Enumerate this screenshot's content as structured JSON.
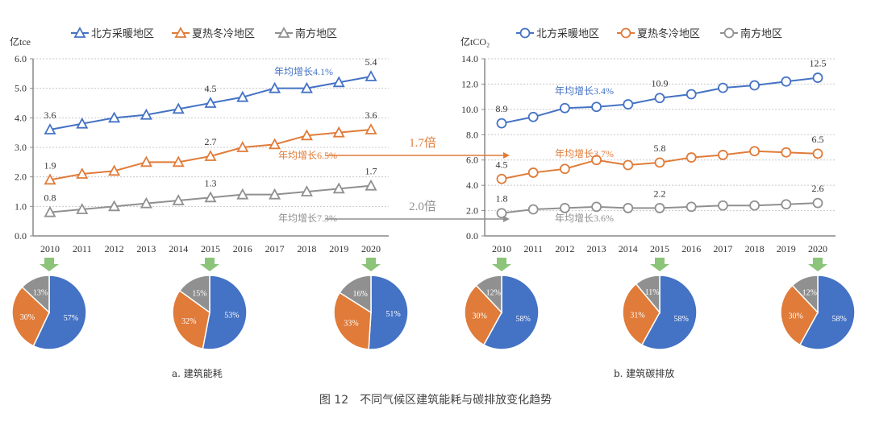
{
  "figure_caption": "图 12　不同气候区建筑能耗与碳排放变化趋势",
  "colors": {
    "north": "#4472C4",
    "hscw": "#E07B39",
    "south": "#909090",
    "arrow_green": "#8CC47A",
    "grid": "#c8c8c8",
    "axis": "#888888"
  },
  "chart_data": [
    {
      "id": "energy",
      "type": "line",
      "sub_caption": "a. 建筑能耗",
      "ylabel": "亿tce",
      "ylim": [
        0,
        6
      ],
      "yticks": [
        "0.0",
        "1.0",
        "2.0",
        "3.0",
        "4.0",
        "5.0",
        "6.0"
      ],
      "ytick_values": [
        0,
        1,
        2,
        3,
        4,
        5,
        6
      ],
      "grid": true,
      "marker": "triangle",
      "legend_position": "top",
      "x": [
        "2010",
        "2011",
        "2012",
        "2013",
        "2014",
        "2015",
        "2016",
        "2017",
        "2018",
        "2019",
        "2020"
      ],
      "series": [
        {
          "name": "北方采暖地区",
          "key": "north",
          "values": [
            3.6,
            3.8,
            4.0,
            4.1,
            4.3,
            4.5,
            4.7,
            5.0,
            5.0,
            5.2,
            5.4
          ],
          "labels": [
            {
              "i": 0,
              "text": "3.6"
            },
            {
              "i": 5,
              "text": "4.5"
            },
            {
              "i": 10,
              "text": "5.4"
            }
          ],
          "growth": "年均增长4.1%"
        },
        {
          "name": "夏热冬冷地区",
          "key": "hscw",
          "values": [
            1.9,
            2.1,
            2.2,
            2.5,
            2.5,
            2.7,
            3.0,
            3.1,
            3.4,
            3.5,
            3.6
          ],
          "labels": [
            {
              "i": 0,
              "text": "1.9"
            },
            {
              "i": 5,
              "text": "2.7"
            },
            {
              "i": 10,
              "text": "3.6"
            }
          ],
          "growth": "年均增长6.5%"
        },
        {
          "name": "南方地区",
          "key": "south",
          "values": [
            0.8,
            0.9,
            1.0,
            1.1,
            1.2,
            1.3,
            1.4,
            1.4,
            1.5,
            1.6,
            1.7
          ],
          "labels": [
            {
              "i": 0,
              "text": "0.8"
            },
            {
              "i": 5,
              "text": "1.3"
            },
            {
              "i": 10,
              "text": "1.7"
            }
          ],
          "growth": "年均增长7.3%"
        }
      ],
      "pies": [
        {
          "year": "2010",
          "slices": [
            {
              "key": "north",
              "value": 57,
              "label": "57%"
            },
            {
              "key": "hscw",
              "value": 30,
              "label": "30%"
            },
            {
              "key": "south",
              "value": 13,
              "label": "13%"
            }
          ]
        },
        {
          "year": "2015",
          "slices": [
            {
              "key": "north",
              "value": 53,
              "label": "53%"
            },
            {
              "key": "hscw",
              "value": 32,
              "label": "32%"
            },
            {
              "key": "south",
              "value": 15,
              "label": "15%"
            }
          ]
        },
        {
          "year": "2020",
          "slices": [
            {
              "key": "north",
              "value": 51,
              "label": "51%"
            },
            {
              "key": "hscw",
              "value": 33,
              "label": "33%"
            },
            {
              "key": "south",
              "value": 16,
              "label": "16%"
            }
          ]
        }
      ]
    },
    {
      "id": "carbon",
      "type": "line",
      "sub_caption": "b. 建筑碳排放",
      "ylabel": "亿tCO₂",
      "ylim": [
        0,
        14
      ],
      "yticks": [
        "0.0",
        "2.0",
        "4.0",
        "6.0",
        "8.0",
        "10.0",
        "12.0",
        "14.0"
      ],
      "ytick_values": [
        0,
        2,
        4,
        6,
        8,
        10,
        12,
        14
      ],
      "grid": true,
      "marker": "circle",
      "legend_position": "top",
      "x": [
        "2010",
        "2011",
        "2012",
        "2013",
        "2014",
        "2015",
        "2016",
        "2017",
        "2018",
        "2019",
        "2020"
      ],
      "series": [
        {
          "name": "北方采暖地区",
          "key": "north",
          "values": [
            8.9,
            9.4,
            10.1,
            10.2,
            10.4,
            10.9,
            11.2,
            11.7,
            11.9,
            12.2,
            12.5
          ],
          "labels": [
            {
              "i": 0,
              "text": "8.9"
            },
            {
              "i": 5,
              "text": "10.9"
            },
            {
              "i": 10,
              "text": "12.5"
            }
          ],
          "growth": "年均增长3.4%"
        },
        {
          "name": "夏热冬冷地区",
          "key": "hscw",
          "values": [
            4.5,
            5.0,
            5.3,
            6.0,
            5.6,
            5.8,
            6.2,
            6.4,
            6.7,
            6.6,
            6.5
          ],
          "labels": [
            {
              "i": 0,
              "text": "4.5"
            },
            {
              "i": 5,
              "text": "5.8"
            },
            {
              "i": 10,
              "text": "6.5"
            }
          ],
          "growth": "年均增长3.7%"
        },
        {
          "name": "南方地区",
          "key": "south",
          "values": [
            1.8,
            2.1,
            2.2,
            2.3,
            2.2,
            2.2,
            2.3,
            2.4,
            2.4,
            2.5,
            2.6
          ],
          "labels": [
            {
              "i": 0,
              "text": "1.8"
            },
            {
              "i": 5,
              "text": "2.2"
            },
            {
              "i": 10,
              "text": "2.6"
            }
          ],
          "growth": "年均增长3.6%"
        }
      ],
      "pies": [
        {
          "year": "2010",
          "slices": [
            {
              "key": "north",
              "value": 58,
              "label": "58%"
            },
            {
              "key": "hscw",
              "value": 30,
              "label": "30%"
            },
            {
              "key": "south",
              "value": 12,
              "label": "12%"
            }
          ]
        },
        {
          "year": "2015",
          "slices": [
            {
              "key": "north",
              "value": 58,
              "label": "58%"
            },
            {
              "key": "hscw",
              "value": 31,
              "label": "31%"
            },
            {
              "key": "south",
              "value": 11,
              "label": "11%"
            }
          ]
        },
        {
          "year": "2020",
          "slices": [
            {
              "key": "north",
              "value": 58,
              "label": "58%"
            },
            {
              "key": "hscw",
              "value": 30,
              "label": "30%"
            },
            {
              "key": "south",
              "value": 12,
              "label": "12%"
            }
          ]
        }
      ]
    }
  ],
  "ratios": [
    {
      "key": "hscw",
      "text": "1.7倍"
    },
    {
      "key": "south",
      "text": "2.0倍"
    }
  ]
}
